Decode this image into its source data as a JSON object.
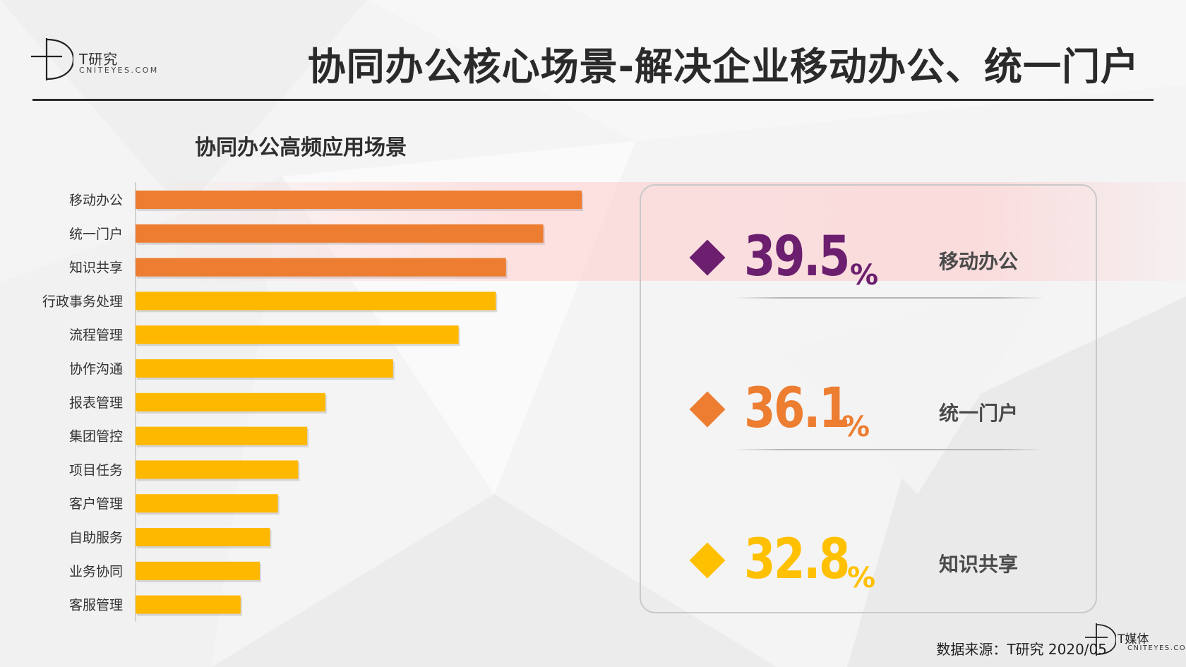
{
  "logo": {
    "cn": "T研究",
    "en": "CNITEYES.COM"
  },
  "title": "协同办公核心场景-解决企业移动办公、统一门户",
  "chart_data": {
    "type": "bar",
    "orientation": "horizontal",
    "title": "协同办公高频应用场景",
    "categories": [
      "移动办公",
      "统一门户",
      "知识共享",
      "行政事务处理",
      "流程管理",
      "协作沟通",
      "报表管理",
      "集团管控",
      "项目任务",
      "客户管理",
      "自助服务",
      "业务协同",
      "客服管理"
    ],
    "values": [
      39.5,
      36.1,
      32.8,
      31.9,
      28.6,
      22.8,
      16.8,
      15.2,
      14.4,
      12.6,
      11.9,
      11.0,
      9.3
    ],
    "colors": [
      "#ED7D31",
      "#ED7D31",
      "#ED7D31",
      "#FFB800",
      "#FFB800",
      "#FFB800",
      "#FFB800",
      "#FFB800",
      "#FFB800",
      "#FFB800",
      "#FFB800",
      "#FFB800",
      "#FFB800"
    ],
    "xlim": [
      0,
      40
    ],
    "grid": false,
    "legend": "none"
  },
  "highlights": [
    {
      "value": "39.5",
      "unit": "%",
      "label": "移动办公",
      "color": "#6B1F6E"
    },
    {
      "value": "36.1",
      "unit": "%",
      "label": "统一门户",
      "color": "#ED7D31"
    },
    {
      "value": "32.8",
      "unit": "%",
      "label": "知识共享",
      "color": "#FFC000"
    }
  ],
  "source": "数据来源：T研究 2020/05",
  "media_logo": {
    "cn": "T媒体",
    "en": "CNITEYES.COM"
  }
}
